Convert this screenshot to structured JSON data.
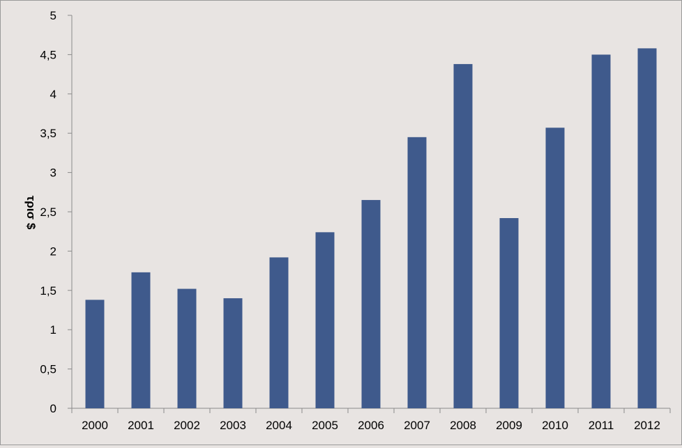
{
  "chart_data": {
    "type": "bar",
    "title": "",
    "xlabel": "",
    "ylabel": "τρισ $",
    "categories": [
      "2000",
      "2001",
      "2002",
      "2003",
      "2004",
      "2005",
      "2006",
      "2007",
      "2008",
      "2009",
      "2010",
      "2011",
      "2012"
    ],
    "series": [
      {
        "values": [
          1.38,
          1.73,
          1.52,
          1.4,
          1.92,
          2.24,
          2.65,
          3.45,
          4.38,
          2.42,
          3.57,
          4.5,
          4.58
        ],
        "color": "#3f5a8c"
      }
    ],
    "ylim": [
      0,
      5
    ],
    "yticks": [
      0,
      0.5,
      1,
      1.5,
      2,
      2.5,
      3,
      3.5,
      4,
      4.5,
      5
    ],
    "ytick_labels": [
      "0",
      "0,5",
      "1",
      "1,5",
      "2",
      "2,5",
      "3",
      "3,5",
      "4",
      "4,5",
      "5"
    ],
    "grid": false,
    "legend": "none"
  }
}
